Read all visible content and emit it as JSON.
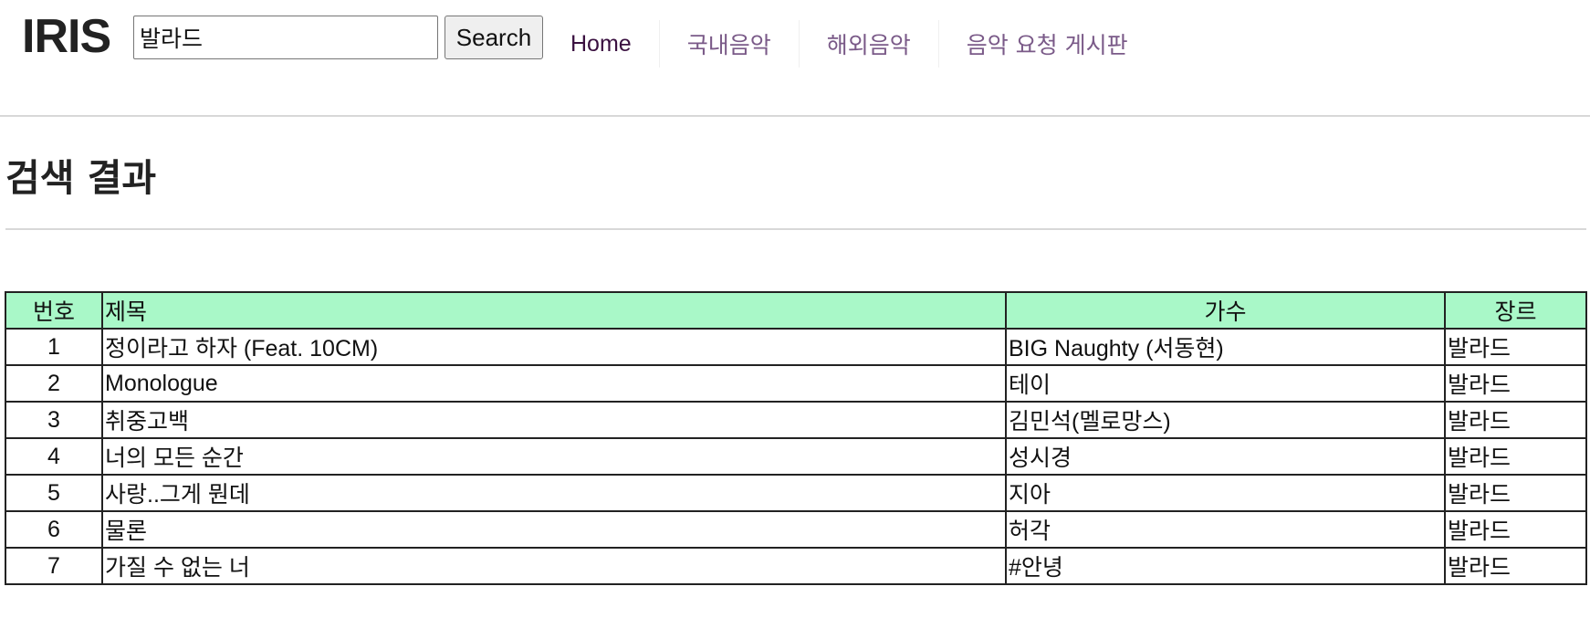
{
  "header": {
    "logo": "IRIS",
    "search": {
      "value": "발라드",
      "button_label": "Search"
    },
    "nav": [
      {
        "label": "Home"
      },
      {
        "label": "국내음악"
      },
      {
        "label": "해외음악"
      },
      {
        "label": "음악 요청 게시판"
      }
    ]
  },
  "main": {
    "title": "검색 결과",
    "table": {
      "columns": [
        "번호",
        "제목",
        "가수",
        "장르"
      ],
      "rows": [
        {
          "no": "1",
          "title": "정이라고 하자 (Feat. 10CM)",
          "artist": "BIG Naughty (서동현)",
          "genre": "발라드"
        },
        {
          "no": "2",
          "title": "Monologue",
          "artist": "테이",
          "genre": "발라드"
        },
        {
          "no": "3",
          "title": "취중고백",
          "artist": "김민석(멜로망스)",
          "genre": "발라드"
        },
        {
          "no": "4",
          "title": "너의 모든 순간",
          "artist": "성시경",
          "genre": "발라드"
        },
        {
          "no": "5",
          "title": "사랑..그게 뭔데",
          "artist": "지아",
          "genre": "발라드"
        },
        {
          "no": "6",
          "title": "물론",
          "artist": "허각",
          "genre": "발라드"
        },
        {
          "no": "7",
          "title": "가질 수 없는 너",
          "artist": "#안녕",
          "genre": "발라드"
        }
      ]
    }
  },
  "colors": {
    "table_header_bg": "#a9f8c8",
    "nav_link": "#7a5a88",
    "nav_home": "#3a1040",
    "divider": "#d8d8d8"
  }
}
